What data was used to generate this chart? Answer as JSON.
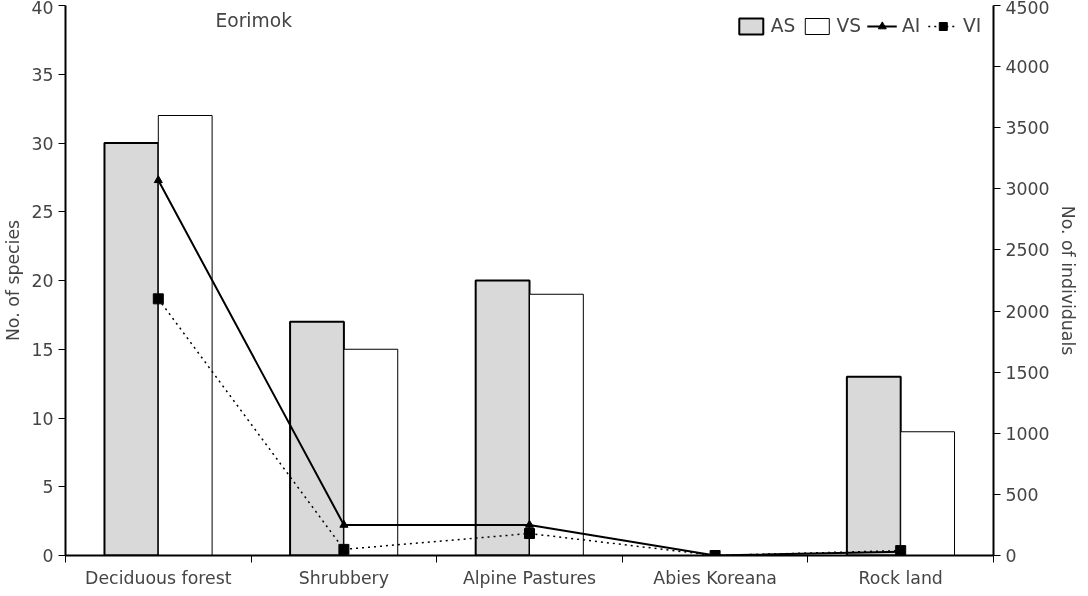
{
  "chart_data": {
    "type": "bar",
    "title": "Eorimok",
    "ylabel": "No. of species",
    "y2label": "No. of individuals",
    "categories": [
      "Deciduous forest",
      "Shrubbery",
      "Alpine Pastures",
      "Abies Koreana",
      "Rock land"
    ],
    "series": [
      {
        "name": "AS",
        "color": "#d9d9d9",
        "values": [
          30,
          17,
          20,
          0,
          13
        ]
      },
      {
        "name": "VS",
        "color": "#ffffff",
        "values": [
          32,
          15,
          19,
          0,
          9
        ]
      },
      {
        "name": "AI",
        "type": "line",
        "axis": "y2",
        "color": "#000000",
        "marker": "triangle",
        "line_style": "solid",
        "values": [
          3070,
          250,
          250,
          0,
          30
        ]
      },
      {
        "name": "VI",
        "type": "line",
        "axis": "y2",
        "color": "#000000",
        "marker": "square",
        "line_style": "dotted",
        "values": [
          2100,
          50,
          180,
          0,
          40
        ]
      }
    ],
    "ylim": [
      0,
      40
    ],
    "yticks": [
      0,
      5,
      10,
      15,
      20,
      25,
      30,
      35,
      40
    ],
    "y2lim": [
      0,
      4500
    ],
    "y2ticks": [
      0,
      500,
      1000,
      1500,
      2000,
      2500,
      3000,
      3500,
      4000,
      4500
    ],
    "grid": false,
    "legend": "top right"
  }
}
